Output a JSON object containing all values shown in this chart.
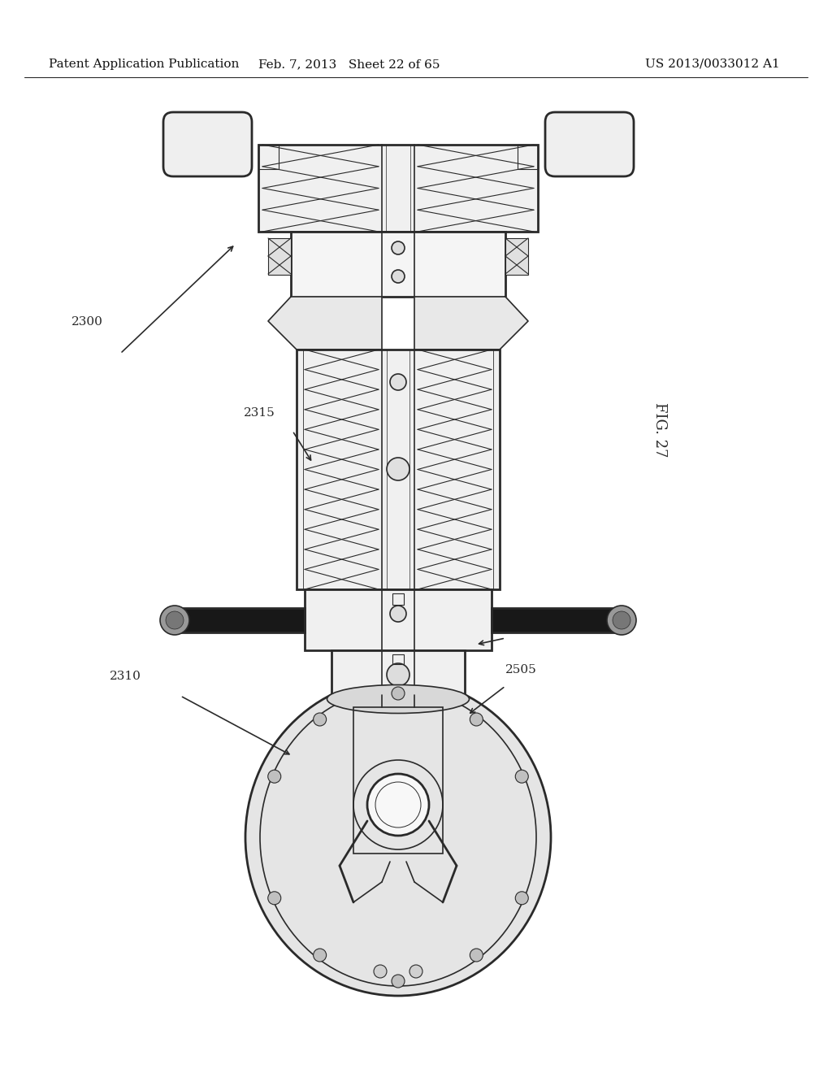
{
  "title_left": "Patent Application Publication",
  "title_mid": "Feb. 7, 2013   Sheet 22 of 65",
  "title_right": "US 2013/0033012 A1",
  "fig_label": "FIG. 27",
  "bg_color": "#ffffff",
  "line_color": "#2a2a2a",
  "header_font_size": 11,
  "label_font_size": 11
}
